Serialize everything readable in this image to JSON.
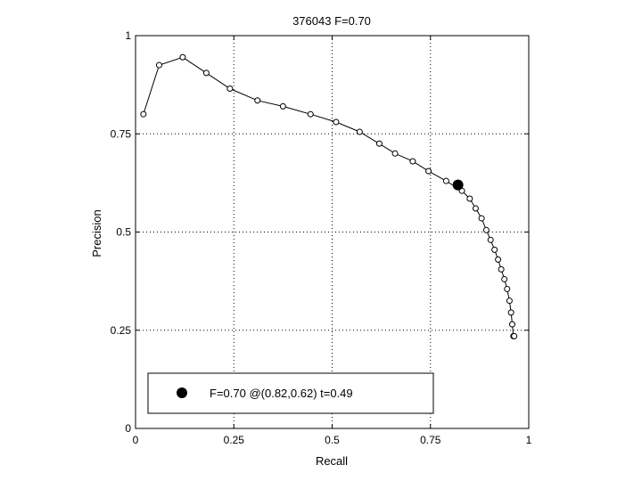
{
  "chart_data": {
    "type": "line",
    "title": "376043 F=0.70",
    "xlabel": "Recall",
    "ylabel": "Precision",
    "xlim": [
      0,
      1
    ],
    "ylim": [
      0,
      1
    ],
    "xticks": [
      0,
      0.25,
      0.5,
      0.75,
      1
    ],
    "xtick_labels": [
      "0",
      "0.25",
      "0.5",
      "0.75",
      "1"
    ],
    "yticks": [
      0,
      0.25,
      0.5,
      0.75,
      1
    ],
    "ytick_labels": [
      "0",
      "0.25",
      "0.5",
      "0.75",
      "1"
    ],
    "grid": true,
    "legend_position": "bottom-left",
    "series": [
      {
        "marker": "open-circle",
        "color": "#000000",
        "x": [
          0.02,
          0.06,
          0.12,
          0.18,
          0.24,
          0.31,
          0.375,
          0.445,
          0.51,
          0.57,
          0.62,
          0.66,
          0.705,
          0.745,
          0.79,
          0.83,
          0.85,
          0.865,
          0.88,
          0.892,
          0.903,
          0.913,
          0.922,
          0.93,
          0.938,
          0.945,
          0.951,
          0.955,
          0.958,
          0.961,
          0.963
        ],
        "y": [
          0.8,
          0.925,
          0.945,
          0.905,
          0.865,
          0.835,
          0.82,
          0.8,
          0.78,
          0.755,
          0.725,
          0.7,
          0.68,
          0.655,
          0.63,
          0.605,
          0.585,
          0.56,
          0.535,
          0.505,
          0.48,
          0.455,
          0.43,
          0.405,
          0.38,
          0.355,
          0.325,
          0.295,
          0.265,
          0.235,
          0.235
        ]
      }
    ],
    "highlight_point": {
      "x": 0.82,
      "y": 0.62,
      "marker": "filled-circle",
      "color": "#000000"
    },
    "legend": {
      "label": "F=0.70 @(0.82,0.62) t=0.49"
    }
  }
}
